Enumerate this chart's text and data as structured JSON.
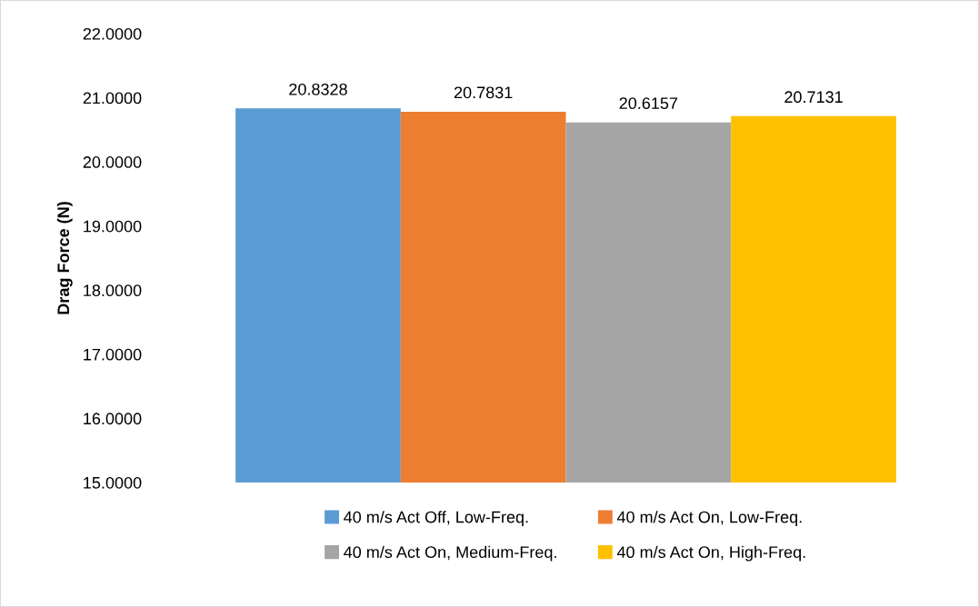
{
  "chart_data": {
    "type": "bar",
    "ylabel": "Drag Force (N)",
    "categories": [
      null
    ],
    "series": [
      {
        "name": "40 m/s Act Off, Low-Freq.",
        "color": "#5b9bd5",
        "values": [
          20.8328
        ]
      },
      {
        "name": "40 m/s Act On, Low-Freq.",
        "color": "#ed7d31",
        "values": [
          20.7831
        ]
      },
      {
        "name": "40 m/s Act On, Medium-Freq.",
        "color": "#a5a5a5",
        "values": [
          20.6157
        ]
      },
      {
        "name": "40 m/s Act On, High-Freq.",
        "color": "#ffc000",
        "values": [
          20.7131
        ]
      }
    ],
    "ylim": [
      15,
      22
    ],
    "yticks": [
      {
        "value": 15,
        "label": "15.0000"
      },
      {
        "value": 16,
        "label": "16.0000"
      },
      {
        "value": 17,
        "label": "17.0000"
      },
      {
        "value": 18,
        "label": "18.0000"
      },
      {
        "value": 19,
        "label": "19.0000"
      },
      {
        "value": 20,
        "label": "20.0000"
      },
      {
        "value": 21,
        "label": "21.0000"
      },
      {
        "value": 22,
        "label": "22.0000"
      }
    ],
    "data_labels": true,
    "legend": "bottom",
    "grid": false
  }
}
